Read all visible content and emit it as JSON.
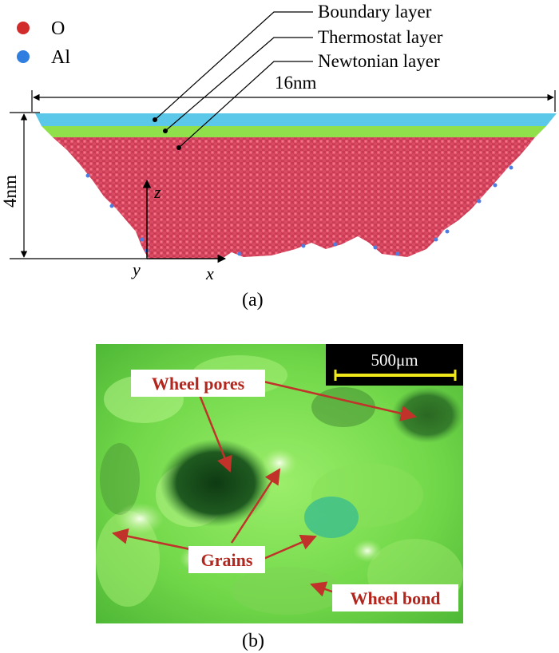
{
  "panel_a": {
    "legend": [
      {
        "symbol": "O",
        "color": "#d22b2b"
      },
      {
        "symbol": "Al",
        "color": "#2f7ee0"
      }
    ],
    "layers": {
      "boundary": "Boundary layer",
      "thermostat": "Thermostat layer",
      "newtonian": "Newtonian layer"
    },
    "dimensions": {
      "width": "16nm",
      "height": "4nm"
    },
    "axes": {
      "z": "z",
      "y": "y",
      "x": "x"
    },
    "caption": "(a)",
    "colors": {
      "boundary": "#5bc8ea",
      "thermostat": "#8fe04a",
      "atom_o": "#d84860",
      "atom_al": "#4d7de0"
    }
  },
  "panel_b": {
    "scale_bar": "500μm",
    "labels": {
      "wheel_pores": "Wheel pores",
      "grains": "Grains",
      "wheel_bond": "Wheel bond"
    },
    "caption": "(b)",
    "colors": {
      "label_text": "#b3261e",
      "arrow": "#c0322a",
      "scale_bar": "#f0e81a"
    }
  }
}
